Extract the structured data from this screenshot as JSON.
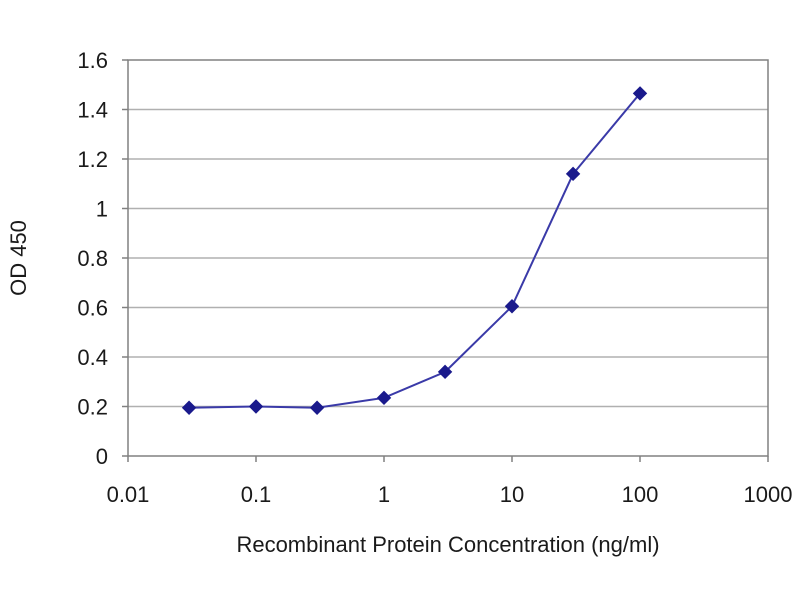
{
  "chart_data": {
    "type": "line",
    "title": "",
    "xlabel": "Recombinant Protein Concentration (ng/ml)",
    "ylabel": "OD 450",
    "xscale": "log",
    "xlim": [
      0.01,
      1000
    ],
    "ylim": [
      0,
      1.6
    ],
    "x_ticks": [
      "0.01",
      "0.1",
      "1",
      "10",
      "100",
      "1000"
    ],
    "y_ticks": [
      "0",
      "0.2",
      "0.4",
      "0.6",
      "0.8",
      "1",
      "1.2",
      "1.4",
      "1.6"
    ],
    "grid": "horizontal",
    "legend": "none",
    "series": [
      {
        "x": [
          0.03,
          0.1,
          0.3,
          1,
          3,
          10,
          30,
          100
        ],
        "y": [
          0.195,
          0.2,
          0.195,
          0.235,
          0.34,
          0.605,
          1.14,
          1.465
        ]
      }
    ],
    "colors": {
      "series": "#1a1a8c",
      "line": "#3a3aa8",
      "grid": "#b0b0b0",
      "axis": "#808080"
    }
  }
}
